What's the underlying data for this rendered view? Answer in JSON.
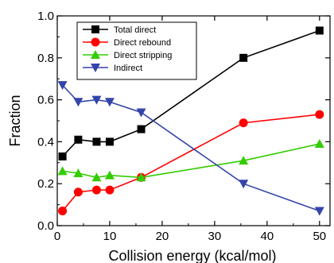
{
  "chart_data": {
    "type": "line",
    "xlabel": "Collision energy (kcal/mol)",
    "ylabel": "Fraction",
    "xlim": [
      0,
      52
    ],
    "ylim": [
      0,
      1.0
    ],
    "x_ticks": [
      0,
      10,
      20,
      30,
      40,
      50
    ],
    "y_ticks": [
      0.0,
      0.2,
      0.4,
      0.6,
      0.8,
      1.0
    ],
    "x_tick_labels": [
      "0",
      "10",
      "20",
      "30",
      "40",
      "50"
    ],
    "y_tick_labels": [
      "0.0",
      "0.2",
      "0.4",
      "0.6",
      "0.8",
      "1.0"
    ],
    "legend_position": "top-left",
    "grid": false,
    "series": [
      {
        "name": "Total direct",
        "color": "#000000",
        "marker": "square",
        "points": [
          [
            1,
            0.33
          ],
          [
            4,
            0.41
          ],
          [
            7.5,
            0.4
          ],
          [
            10,
            0.4
          ],
          [
            16,
            0.46
          ],
          [
            35.5,
            0.8
          ],
          [
            50,
            0.93
          ]
        ]
      },
      {
        "name": "Direct rebound",
        "color": "#ff0000",
        "marker": "circle",
        "points": [
          [
            1,
            0.07
          ],
          [
            4,
            0.16
          ],
          [
            7.5,
            0.17
          ],
          [
            10,
            0.17
          ],
          [
            16,
            0.23
          ],
          [
            35.5,
            0.49
          ],
          [
            50,
            0.53
          ]
        ]
      },
      {
        "name": "Direct stripping",
        "color": "#33cc00",
        "marker": "triangle-up",
        "points": [
          [
            1,
            0.26
          ],
          [
            4,
            0.25
          ],
          [
            7.5,
            0.23
          ],
          [
            10,
            0.24
          ],
          [
            16,
            0.23
          ],
          [
            35.5,
            0.31
          ],
          [
            50,
            0.39
          ]
        ]
      },
      {
        "name": "Indirect",
        "color": "#3344aa",
        "marker": "triangle-down",
        "points": [
          [
            1,
            0.67
          ],
          [
            4,
            0.59
          ],
          [
            7.5,
            0.6
          ],
          [
            10,
            0.59
          ],
          [
            16,
            0.54
          ],
          [
            35.5,
            0.2
          ],
          [
            50,
            0.07
          ]
        ]
      }
    ]
  }
}
